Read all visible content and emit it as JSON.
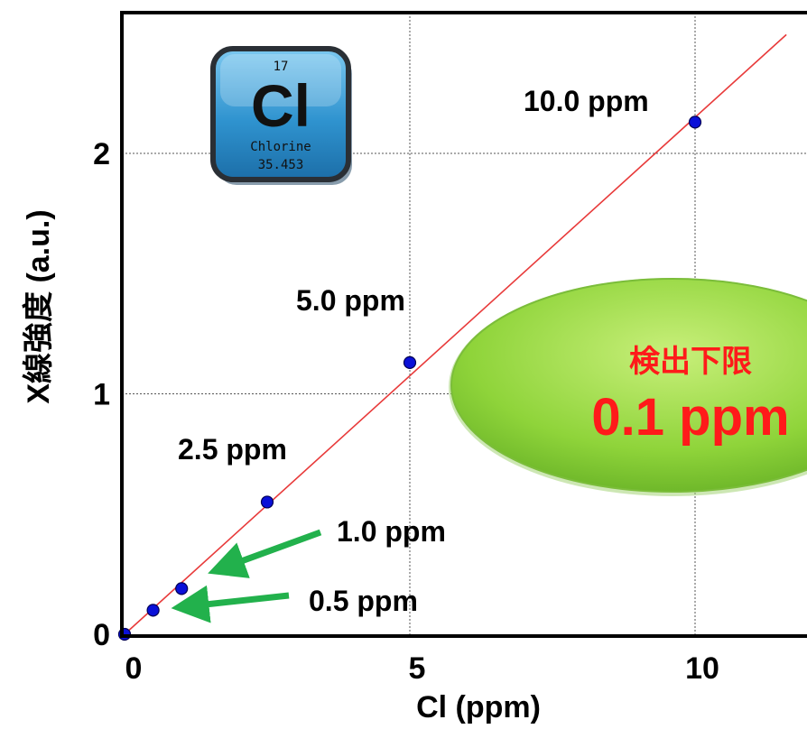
{
  "chart_data": {
    "type": "scatter",
    "xlabel": "Cl (ppm)",
    "ylabel": "X線強度 (a.u.)",
    "xlim": [
      0,
      11.6
    ],
    "ylim": [
      0,
      2.6
    ],
    "x_ticks": [
      0,
      5,
      10
    ],
    "x_tick_labels": [
      "0",
      "5",
      "10"
    ],
    "y_ticks": [
      0,
      1,
      2
    ],
    "y_tick_labels": [
      "0",
      "1",
      "2"
    ],
    "grid": true,
    "series": [
      {
        "x": [
          0,
          0.5,
          1.0,
          2.5,
          5.0,
          10.0
        ],
        "y": [
          0.0,
          0.1,
          0.19,
          0.55,
          1.13,
          2.13
        ],
        "color": "#0a10d8"
      }
    ],
    "fit_line": {
      "slope": 0.215,
      "intercept": 0.0,
      "color": "#e83a3a"
    },
    "point_labels": [
      "0.5 ppm",
      "1.0 ppm",
      "2.5 ppm",
      "5.0 ppm",
      "10.0 ppm"
    ],
    "callout": {
      "title": "検出下限",
      "value": "0.1 ppm",
      "fill": "#8fd43a",
      "text_color": "#ff1a1a"
    },
    "arrow_color": "#22b14c"
  },
  "element_icon": {
    "number": "17",
    "symbol": "Cl",
    "name": "Chlorine",
    "mass": "35.453",
    "color": "#3aa0d8"
  }
}
